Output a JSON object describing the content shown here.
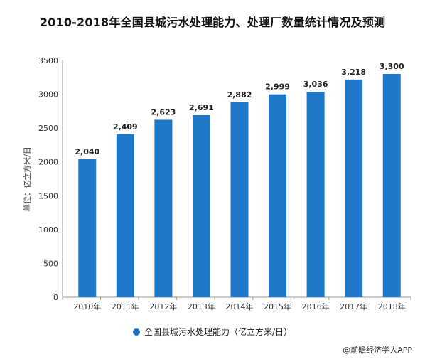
{
  "chart_data": {
    "type": "bar",
    "title": "2010-2018年全国县城污水处理能力、处理厂数量统计情况及预测",
    "ylabel": "单位：亿立方米/日",
    "categories": [
      "2010年",
      "2011年",
      "2012年",
      "2013年",
      "2014年",
      "2015年",
      "2016年",
      "2017年",
      "2018年"
    ],
    "series": [
      {
        "name": "全国县城污水处理能力（亿立方米/日）",
        "values": [
          2040,
          2409,
          2623,
          2691,
          2882,
          2999,
          3036,
          3218,
          3300
        ],
        "labels": [
          "2,040",
          "2,409",
          "2,623",
          "2,691",
          "2,882",
          "2,999",
          "3,036",
          "3,218",
          "3,300"
        ]
      }
    ],
    "ylim": [
      0,
      3500
    ],
    "yticks": [
      0,
      500,
      1000,
      1500,
      2000,
      2500,
      3000,
      3500
    ],
    "grid": false,
    "legend_position": "bottom",
    "color": "#1f77c9"
  },
  "source": "@前瞻经济学人APP"
}
